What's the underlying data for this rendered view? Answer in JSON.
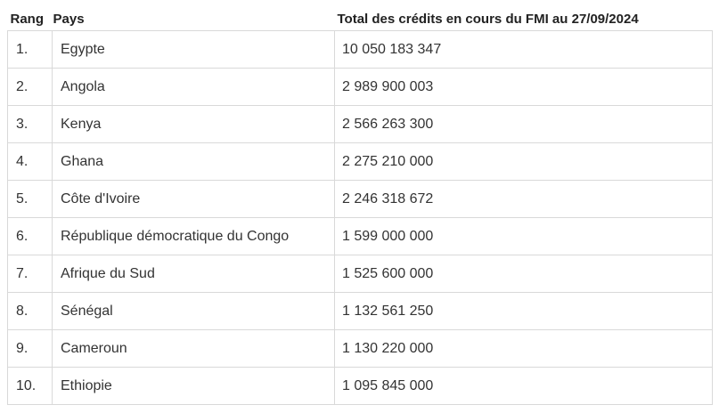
{
  "table": {
    "headers": {
      "rank": "Rang",
      "country": "Pays",
      "credit": "Total des crédits en cours du FMI au 27/09/2024"
    },
    "rows": [
      {
        "rank": "1.",
        "country": "Egypte",
        "credit": "10 050 183 347"
      },
      {
        "rank": "2.",
        "country": "Angola",
        "credit": "2 989 900 003"
      },
      {
        "rank": "3.",
        "country": "Kenya",
        "credit": "2 566 263 300"
      },
      {
        "rank": "4.",
        "country": "Ghana",
        "credit": "2 275 210 000"
      },
      {
        "rank": "5.",
        "country": "Côte d'Ivoire",
        "credit": "2 246 318 672"
      },
      {
        "rank": "6.",
        "country": "République démocratique du Congo",
        "credit": "1 599 000 000"
      },
      {
        "rank": "7.",
        "country": "Afrique du Sud",
        "credit": "1 525 600 000"
      },
      {
        "rank": "8.",
        "country": "Sénégal",
        "credit": "1 132 561 250"
      },
      {
        "rank": "9.",
        "country": "Cameroun",
        "credit": "1 130 220 000"
      },
      {
        "rank": "10.",
        "country": "Ethiopie",
        "credit": "1 095 845 000"
      }
    ]
  }
}
